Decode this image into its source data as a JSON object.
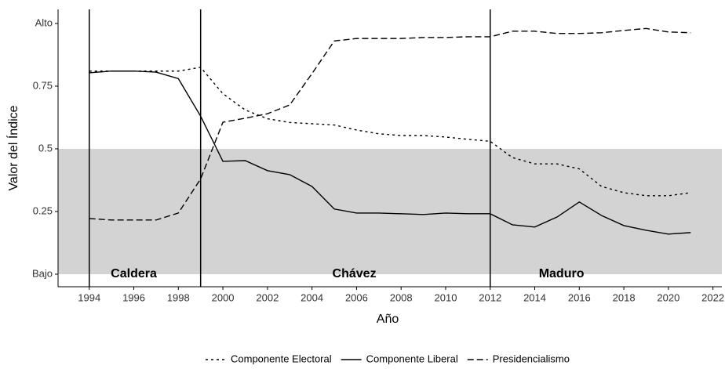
{
  "chart_data": {
    "type": "line",
    "x": [
      1994,
      1995,
      1996,
      1997,
      1998,
      1999,
      2000,
      2001,
      2002,
      2003,
      2004,
      2005,
      2006,
      2007,
      2008,
      2009,
      2010,
      2011,
      2012,
      2013,
      2014,
      2015,
      2016,
      2017,
      2018,
      2019,
      2020,
      2021
    ],
    "series": [
      {
        "name": "Componente Electoral",
        "color": "#000000",
        "dash": "3,4",
        "values": [
          0.81,
          0.81,
          0.81,
          0.81,
          0.81,
          0.825,
          0.72,
          0.655,
          0.62,
          0.605,
          0.6,
          0.595,
          0.575,
          0.56,
          0.553,
          0.553,
          0.547,
          0.538,
          0.53,
          0.465,
          0.44,
          0.44,
          0.42,
          0.35,
          0.325,
          0.313,
          0.313,
          0.325
        ]
      },
      {
        "name": "Componente Liberal",
        "color": "#000000",
        "dash": "none",
        "values": [
          0.803,
          0.81,
          0.81,
          0.806,
          0.78,
          0.63,
          0.45,
          0.453,
          0.413,
          0.397,
          0.35,
          0.26,
          0.244,
          0.244,
          0.241,
          0.238,
          0.244,
          0.241,
          0.241,
          0.197,
          0.188,
          0.228,
          0.288,
          0.234,
          0.194,
          0.175,
          0.16,
          0.166
        ]
      },
      {
        "name": "Presidencialismo",
        "color": "#000000",
        "dash": "8,4",
        "values": [
          0.222,
          0.216,
          0.216,
          0.216,
          0.244,
          0.38,
          0.606,
          0.622,
          0.64,
          0.675,
          0.8,
          0.93,
          0.94,
          0.94,
          0.94,
          0.944,
          0.944,
          0.947,
          0.947,
          0.969,
          0.969,
          0.96,
          0.96,
          0.963,
          0.972,
          0.98,
          0.966,
          0.963
        ]
      }
    ],
    "xlabel": "Año",
    "ylabel": "Valor del Índice",
    "xlim": [
      1992.6,
      2022.4
    ],
    "ylim": [
      -0.05,
      1.056
    ],
    "xticks": [
      1994,
      1996,
      1998,
      2000,
      2002,
      2004,
      2006,
      2008,
      2010,
      2012,
      2014,
      2016,
      2018,
      2020,
      2022
    ],
    "yticks": [
      {
        "value": 0,
        "label": "Bajo"
      },
      0.25,
      0.5,
      0.75,
      {
        "value": 1,
        "label": "Alto"
      }
    ],
    "shade": [
      0,
      0.5
    ],
    "shade_color": "#d3d3d3",
    "vlines": [
      1994,
      1999,
      2012
    ],
    "annotations": [
      {
        "text": "Caldera",
        "x": 1996,
        "y": 0
      },
      {
        "text": "Chávez",
        "x": 2005.9,
        "y": 0
      },
      {
        "text": "Maduro",
        "x": 2015.2,
        "y": 0
      }
    ],
    "legend": "bottom"
  }
}
